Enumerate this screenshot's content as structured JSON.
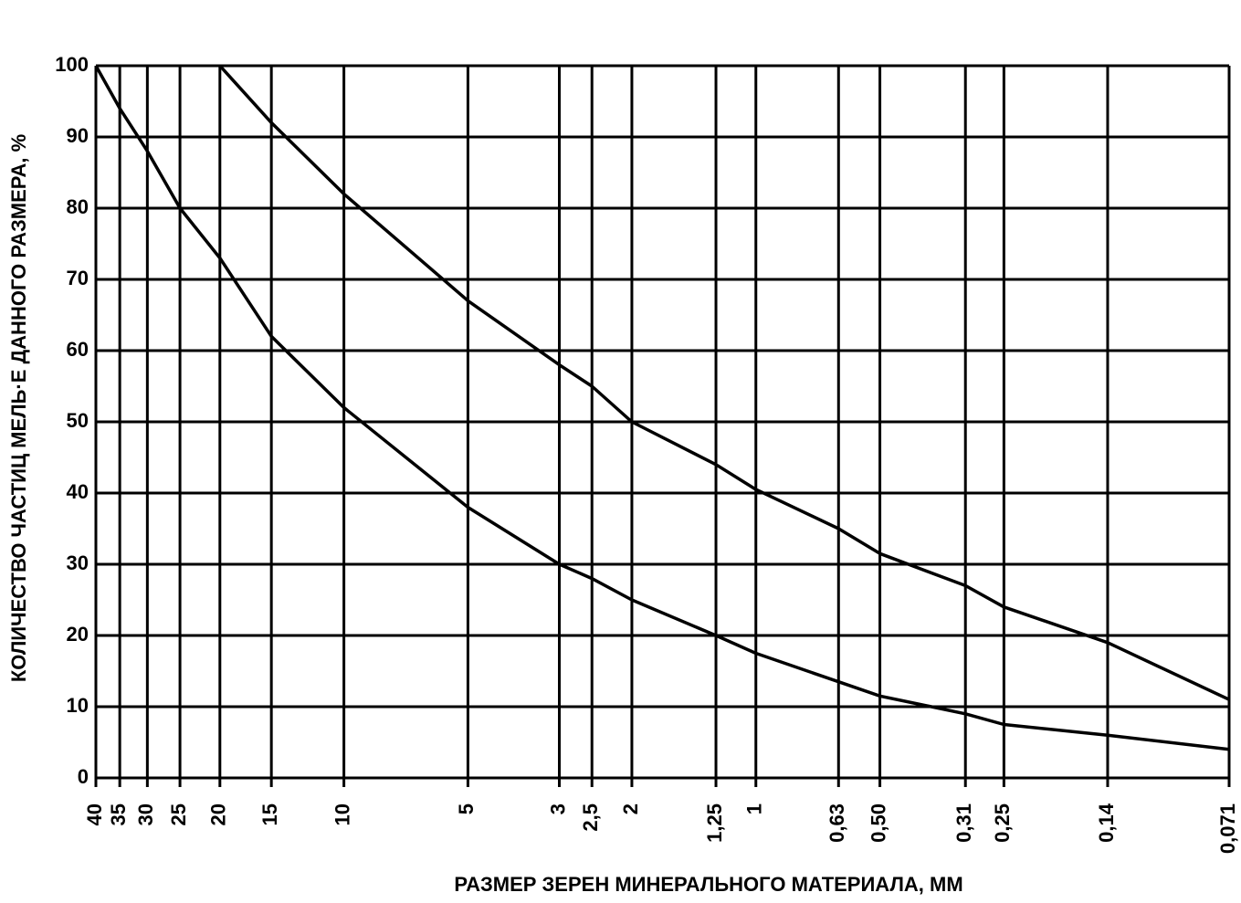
{
  "chart_data": {
    "type": "line",
    "xlabel": "РАЗМЕР ЗЕРЕН МИНЕРАЛЬНОГО МАТЕРИАЛА, ММ",
    "ylabel": "КОЛИЧЕСТВО ЧАСТИЦ МЕЛЬ·Е ДАННОГО РАЗМЕРА, %",
    "x": [
      40,
      35,
      30,
      25,
      20,
      15,
      10,
      5,
      3,
      2.5,
      2,
      1.25,
      1,
      0.63,
      0.5,
      0.31,
      0.25,
      0.14,
      0.071
    ],
    "series": [
      {
        "color": "#000000",
        "values": [
          100,
          94,
          88,
          80,
          73,
          62,
          52,
          38,
          30,
          28,
          25,
          20,
          17.5,
          13.5,
          11.5,
          9,
          7.5,
          6,
          4
        ]
      },
      {
        "color": "#000000",
        "values": [
          null,
          null,
          null,
          null,
          100,
          92,
          82,
          67,
          58,
          55,
          50,
          44,
          40.5,
          35,
          31.5,
          27,
          24,
          19,
          11
        ]
      }
    ],
    "xscale": "log",
    "xlim": [
      40,
      0.071
    ],
    "xticks": [
      40,
      35,
      30,
      25,
      20,
      15,
      10,
      5,
      3,
      {
        "value": 2.5,
        "label": "2,5"
      },
      2,
      {
        "value": 1.25,
        "label": "1,25"
      },
      1,
      {
        "value": 0.63,
        "label": "0,63"
      },
      {
        "value": 0.5,
        "label": "0,50"
      },
      {
        "value": 0.31,
        "label": "0,31"
      },
      {
        "value": 0.25,
        "label": "0,25"
      },
      {
        "value": 0.14,
        "label": "0,14"
      },
      {
        "value": 0.071,
        "label": "0,071"
      }
    ],
    "ylim": [
      0,
      100
    ],
    "yticks": [
      0,
      10,
      20,
      30,
      40,
      50,
      60,
      70,
      80,
      90,
      100
    ],
    "grid": true
  }
}
